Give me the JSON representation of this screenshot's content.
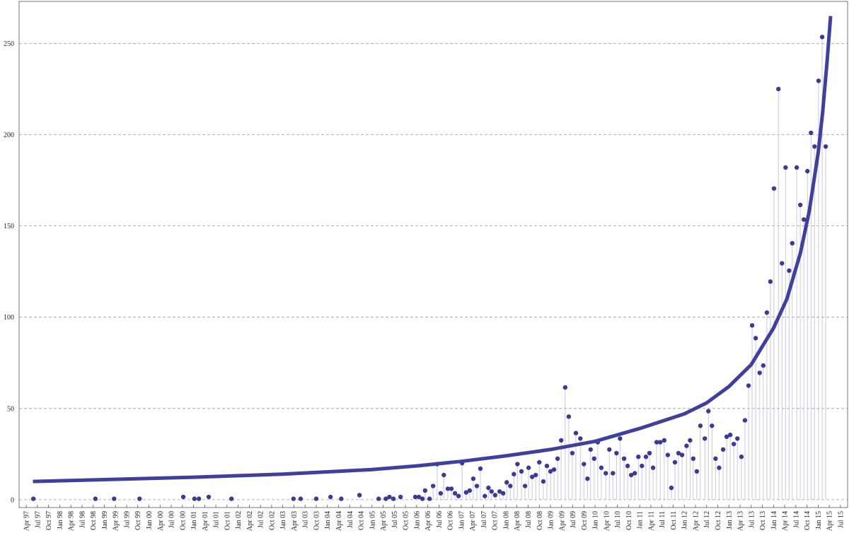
{
  "chart_data": {
    "type": "scatter",
    "xlim": [
      1997.09,
      2015.66
    ],
    "ylim": [
      -4.3,
      273
    ],
    "yticks": [
      0,
      50,
      100,
      150,
      200,
      250
    ],
    "grid": true,
    "xticks": [
      {
        "value": 1997.25,
        "label": "Apr 97"
      },
      {
        "value": 1997.5,
        "label": "Jul 97"
      },
      {
        "value": 1997.75,
        "label": "Oct 97"
      },
      {
        "value": 1998,
        "label": "Jan 98"
      },
      {
        "value": 1998.25,
        "label": "Apr 98"
      },
      {
        "value": 1998.5,
        "label": "Jul 98"
      },
      {
        "value": 1998.75,
        "label": "Oct 98"
      },
      {
        "value": 1999,
        "label": "Jan 99"
      },
      {
        "value": 1999.25,
        "label": "Apr 99"
      },
      {
        "value": 1999.5,
        "label": "Jul 99"
      },
      {
        "value": 1999.75,
        "label": "Oct 99"
      },
      {
        "value": 2000,
        "label": "Jan 00"
      },
      {
        "value": 2000.25,
        "label": "Apr 00"
      },
      {
        "value": 2000.5,
        "label": "Jul 00"
      },
      {
        "value": 2000.75,
        "label": "Oct 00"
      },
      {
        "value": 2001,
        "label": "Jan 01"
      },
      {
        "value": 2001.25,
        "label": "Apr 01"
      },
      {
        "value": 2001.5,
        "label": "Jul 01"
      },
      {
        "value": 2001.75,
        "label": "Oct 01"
      },
      {
        "value": 2002,
        "label": "Jan 02"
      },
      {
        "value": 2002.25,
        "label": "Apr 02"
      },
      {
        "value": 2002.5,
        "label": "Jul 02"
      },
      {
        "value": 2002.75,
        "label": "Oct 02"
      },
      {
        "value": 2003,
        "label": "Jan 03"
      },
      {
        "value": 2003.25,
        "label": "Apr 03"
      },
      {
        "value": 2003.5,
        "label": "Jul 03"
      },
      {
        "value": 2003.75,
        "label": "Oct 03"
      },
      {
        "value": 2004,
        "label": "Jan 04"
      },
      {
        "value": 2004.25,
        "label": "Apr 04"
      },
      {
        "value": 2004.5,
        "label": "Jul 04"
      },
      {
        "value": 2004.75,
        "label": "Oct 04"
      },
      {
        "value": 2005,
        "label": "Jan 05"
      },
      {
        "value": 2005.25,
        "label": "Apr 05"
      },
      {
        "value": 2005.5,
        "label": "Jul 05"
      },
      {
        "value": 2005.75,
        "label": "Oct 05"
      },
      {
        "value": 2006,
        "label": "Jan 06"
      },
      {
        "value": 2006.25,
        "label": "Apr 06"
      },
      {
        "value": 2006.5,
        "label": "Jul 06"
      },
      {
        "value": 2006.75,
        "label": "Oct 06"
      },
      {
        "value": 2007,
        "label": "Jan 07"
      },
      {
        "value": 2007.25,
        "label": "Apr 07"
      },
      {
        "value": 2007.5,
        "label": "Jul 07"
      },
      {
        "value": 2007.75,
        "label": "Oct 07"
      },
      {
        "value": 2008,
        "label": "Jan 08"
      },
      {
        "value": 2008.25,
        "label": "Apr 08"
      },
      {
        "value": 2008.5,
        "label": "Jul 08"
      },
      {
        "value": 2008.75,
        "label": "Oct 08"
      },
      {
        "value": 2009,
        "label": "Jan 09"
      },
      {
        "value": 2009.25,
        "label": "Apr 09"
      },
      {
        "value": 2009.5,
        "label": "Jul 09"
      },
      {
        "value": 2009.75,
        "label": "Oct 09"
      },
      {
        "value": 2010,
        "label": "Jan 10"
      },
      {
        "value": 2010.25,
        "label": "Apr 10"
      },
      {
        "value": 2010.5,
        "label": "Jul 10"
      },
      {
        "value": 2010.75,
        "label": "Oct 10"
      },
      {
        "value": 2011,
        "label": "Jan 11"
      },
      {
        "value": 2011.25,
        "label": "Apr 11"
      },
      {
        "value": 2011.5,
        "label": "Jul 11"
      },
      {
        "value": 2011.75,
        "label": "Oct 11"
      },
      {
        "value": 2012,
        "label": "Jan 12"
      },
      {
        "value": 2012.25,
        "label": "Apr 12"
      },
      {
        "value": 2012.5,
        "label": "Jul 12"
      },
      {
        "value": 2012.75,
        "label": "Oct 12"
      },
      {
        "value": 2013,
        "label": "Jan 13"
      },
      {
        "value": 2013.25,
        "label": "Apr 13"
      },
      {
        "value": 2013.5,
        "label": "Jul 13"
      },
      {
        "value": 2013.75,
        "label": "Oct 13"
      },
      {
        "value": 2014,
        "label": "Jan 14"
      },
      {
        "value": 2014.25,
        "label": "Apr 14"
      },
      {
        "value": 2014.5,
        "label": "Jul 14"
      },
      {
        "value": 2014.75,
        "label": "Oct 14"
      },
      {
        "value": 2015,
        "label": "Jan 15"
      },
      {
        "value": 2015.25,
        "label": "Apr 15"
      },
      {
        "value": 2015.5,
        "label": "Jul 15"
      }
    ],
    "series": [
      {
        "type": "stem",
        "color": "#3b3b94",
        "stem_color": "#c9c9df",
        "x": [
          1997.41,
          1998.8,
          1999.22,
          1999.79,
          2000.77,
          2001.02,
          2001.12,
          2001.34,
          2001.85,
          2003.24,
          2003.4,
          2003.75,
          2004.07,
          2004.31,
          2004.72,
          2005.15,
          2005.31,
          2005.39,
          2005.48,
          2005.64,
          2005.97,
          2006.05,
          2006.13,
          2006.19,
          2006.29,
          2006.37,
          2006.46,
          2006.54,
          2006.61,
          2006.7,
          2006.78,
          2006.86,
          2006.94,
          2007.02,
          2007.11,
          2007.19,
          2007.27,
          2007.35,
          2007.43,
          2007.53,
          2007.61,
          2007.68,
          2007.76,
          2007.86,
          2007.94,
          2008.02,
          2008.1,
          2008.18,
          2008.26,
          2008.35,
          2008.43,
          2008.51,
          2008.59,
          2008.67,
          2008.75,
          2008.84,
          2008.92,
          2009.0,
          2009.08,
          2009.16,
          2009.24,
          2009.33,
          2009.41,
          2009.49,
          2009.57,
          2009.67,
          2009.75,
          2009.83,
          2009.9,
          2009.98,
          2010.06,
          2010.14,
          2010.24,
          2010.32,
          2010.4,
          2010.48,
          2010.56,
          2010.65,
          2010.73,
          2010.81,
          2010.89,
          2010.97,
          2011.05,
          2011.14,
          2011.22,
          2011.3,
          2011.38,
          2011.46,
          2011.55,
          2011.63,
          2011.71,
          2011.79,
          2011.87,
          2011.95,
          2012.05,
          2012.13,
          2012.2,
          2012.28,
          2012.36,
          2012.46,
          2012.54,
          2012.62,
          2012.7,
          2012.78,
          2012.87,
          2012.95,
          2013.03,
          2013.11,
          2013.19,
          2013.28,
          2013.36,
          2013.44,
          2013.52,
          2013.6,
          2013.69,
          2013.77,
          2013.85,
          2013.93,
          2014.01,
          2014.11,
          2014.19,
          2014.27,
          2014.35,
          2014.42,
          2014.52,
          2014.6,
          2014.68,
          2014.76,
          2014.84,
          2014.92,
          2015.01,
          2015.09,
          2015.17
        ],
        "values": [
          0.5,
          0.5,
          0.5,
          0.5,
          1.5,
          0.5,
          0.5,
          1.5,
          0.5,
          0.5,
          0.5,
          0.5,
          1.5,
          0.5,
          2.5,
          0.5,
          0.5,
          1.5,
          0.5,
          1.5,
          1.5,
          1.5,
          0.5,
          5,
          0.5,
          7.5,
          19.5,
          3.5,
          13.5,
          6,
          6,
          3.5,
          2,
          20,
          4,
          5,
          11.5,
          7.5,
          17,
          2,
          6.5,
          4.5,
          2.5,
          4.5,
          3.5,
          9.5,
          7.5,
          14,
          19.5,
          15.5,
          7.5,
          17.5,
          12.5,
          13.5,
          20.5,
          10,
          18.5,
          15.5,
          16.5,
          22.5,
          32.5,
          61.5,
          45.5,
          25.5,
          36.5,
          33.5,
          19.5,
          11.5,
          27.5,
          22.5,
          31.5,
          17.5,
          14.5,
          27.5,
          14.5,
          25.5,
          33.5,
          22.5,
          18.5,
          13.5,
          14.5,
          23.5,
          18.5,
          23.5,
          25.5,
          17.5,
          31.5,
          31.5,
          32.5,
          24.5,
          6.5,
          20.5,
          25.5,
          24.5,
          29.5,
          32.5,
          22.5,
          15.5,
          40.5,
          33.5,
          48.5,
          40.5,
          22.5,
          17.5,
          27.5,
          34.5,
          35.5,
          30.5,
          33.5,
          23.5,
          43.5,
          62.5,
          95.5,
          88.5,
          69.5,
          73.5,
          102.5,
          119.5,
          170.5,
          225,
          129.5,
          182,
          125.5,
          140.5,
          182,
          161.5,
          153.5,
          180,
          201,
          193.5,
          229.5,
          253.5,
          193.5
        ]
      },
      {
        "type": "line",
        "color": "#3f3f9e",
        "x": [
          1997.4,
          1999,
          2001,
          2003,
          2005,
          2006,
          2007,
          2008,
          2009,
          2010,
          2011,
          2012,
          2012.5,
          2013,
          2013.5,
          2014,
          2014.3,
          2014.6,
          2014.8,
          2015,
          2015.1,
          2015.2,
          2015.28
        ],
        "values": [
          10,
          11,
          12.3,
          14,
          16.5,
          18.5,
          21,
          24,
          27.5,
          32,
          39,
          47,
          53,
          62,
          74,
          94,
          110,
          135,
          158,
          190,
          212,
          240,
          265
        ]
      }
    ]
  }
}
